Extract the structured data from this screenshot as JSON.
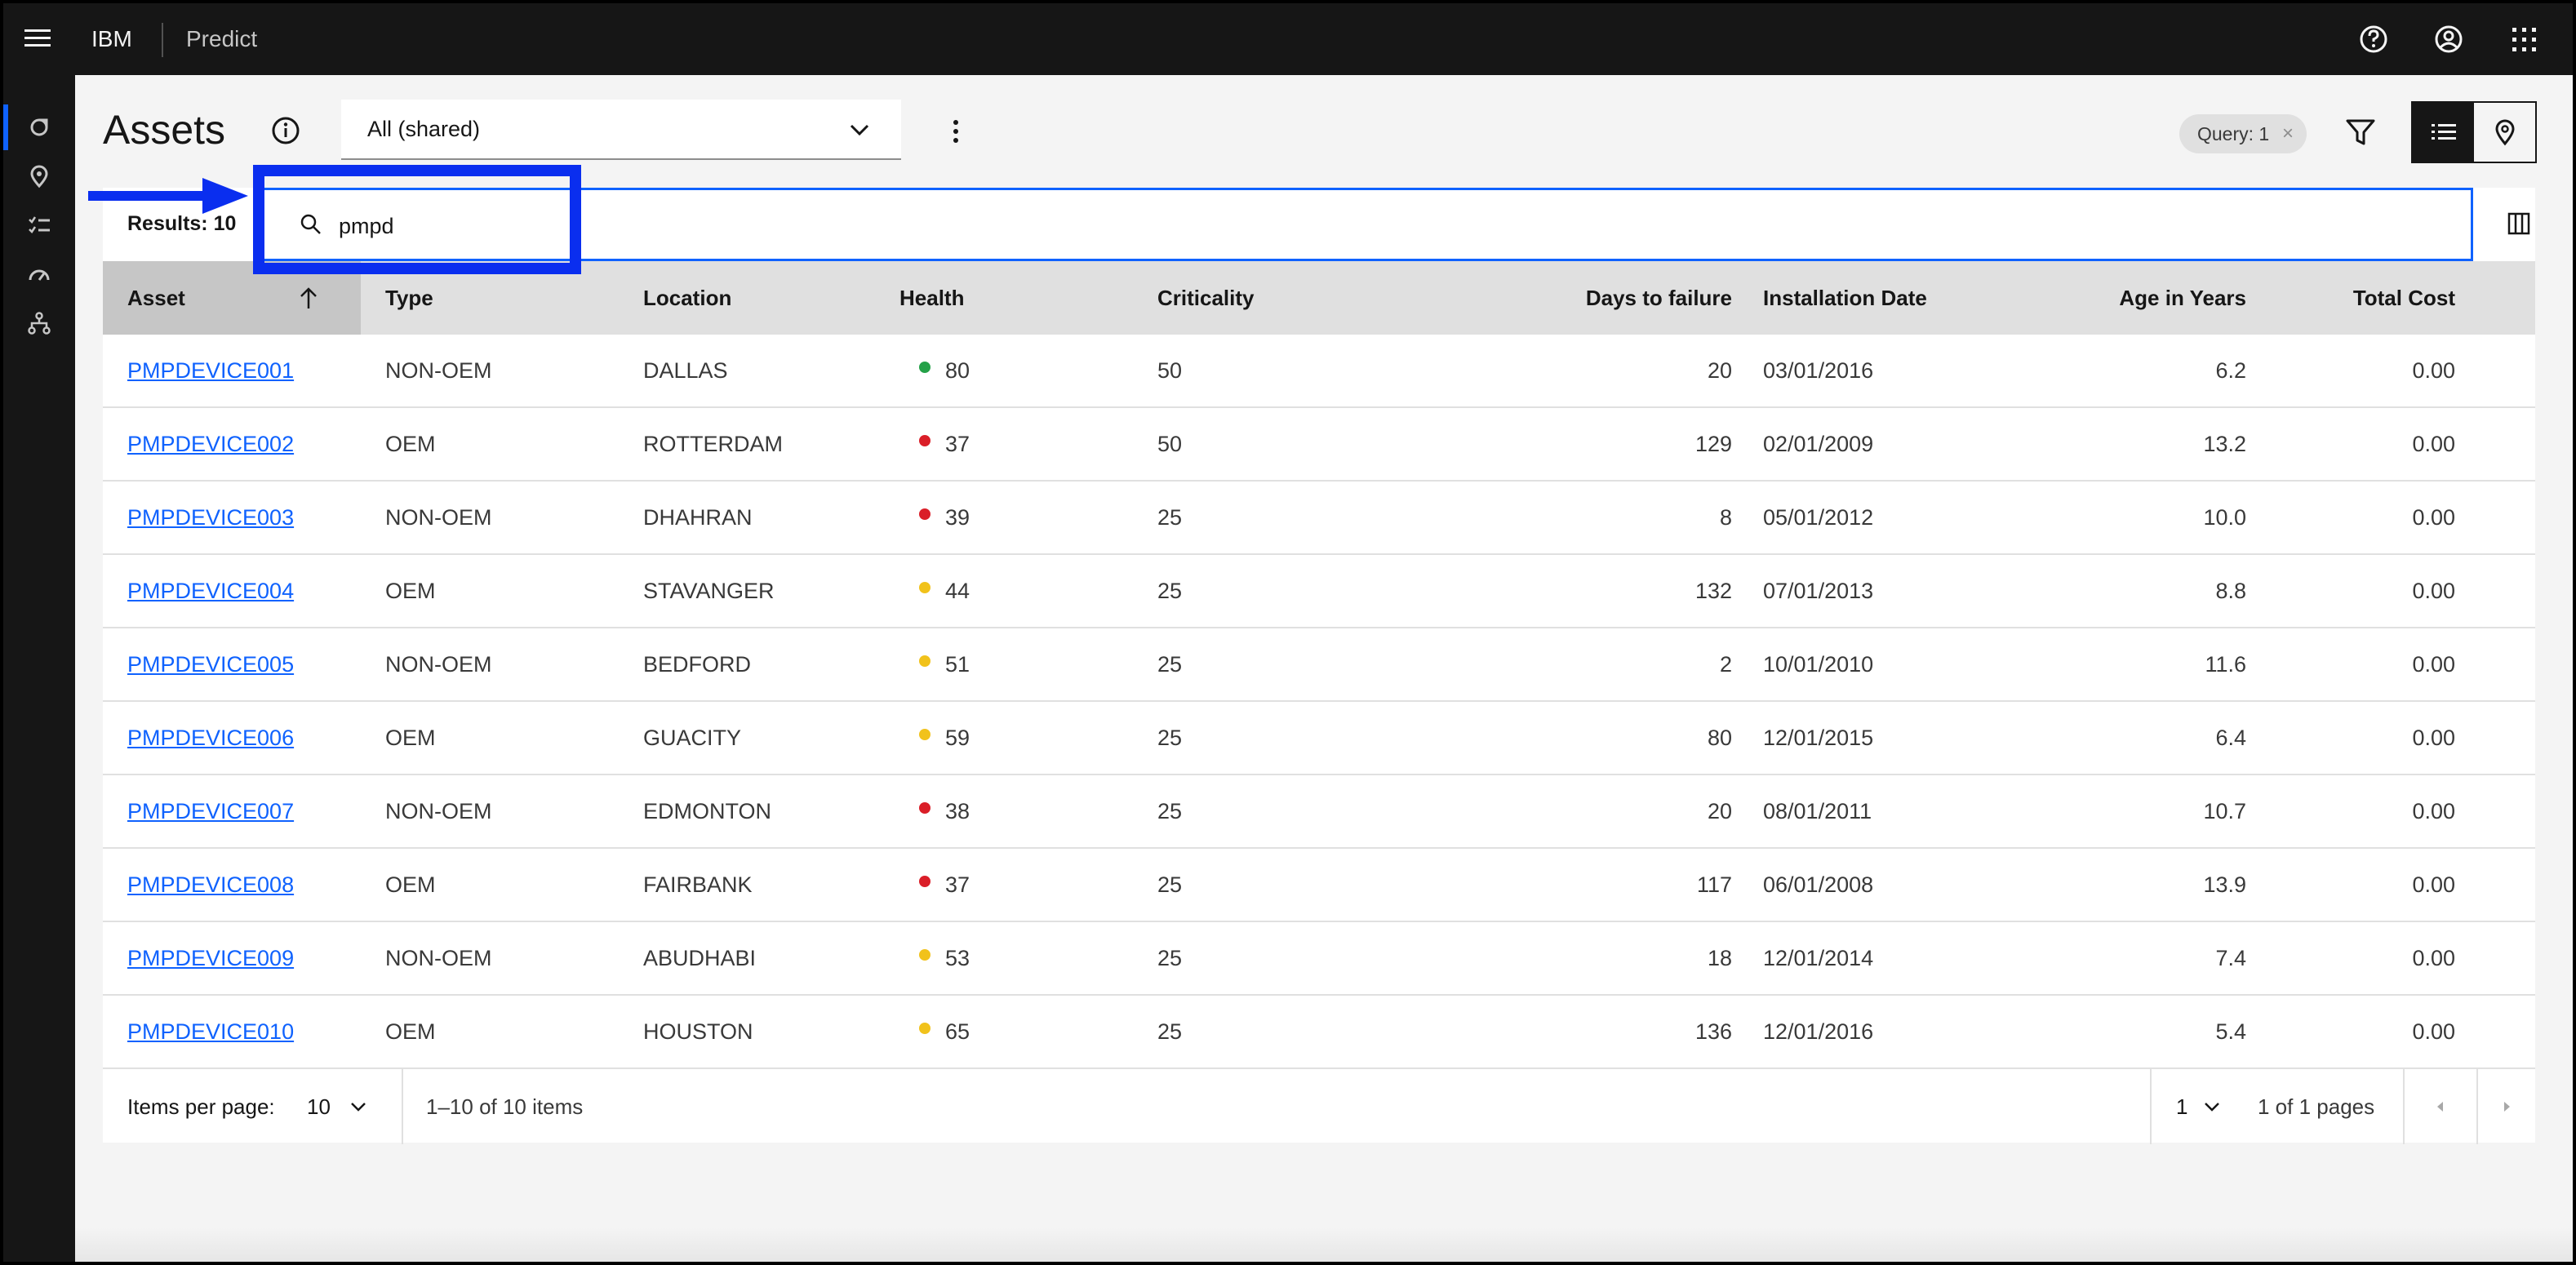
{
  "header": {
    "brand": "IBM",
    "product": "Predict"
  },
  "page": {
    "title": "Assets",
    "view_select": "All (shared)",
    "query_tag": "Query: 1",
    "query_tag_close": "×"
  },
  "toolbar": {
    "results": "Results: 10",
    "search_value": "pmpd"
  },
  "table": {
    "columns": [
      "Asset",
      "Type",
      "Location",
      "Health",
      "Criticality",
      "Days to failure",
      "Installation Date",
      "Age in Years",
      "Total Cost"
    ],
    "rows": [
      {
        "asset": "PMPDEVICE001",
        "type": "NON-OEM",
        "location": "DALLAS",
        "health": "80",
        "health_color": "#24a148",
        "criticality": "50",
        "days": "20",
        "install": "03/01/2016",
        "age": "6.2",
        "cost": "0.00"
      },
      {
        "asset": "PMPDEVICE002",
        "type": "OEM",
        "location": "ROTTERDAM",
        "health": "37",
        "health_color": "#da1e28",
        "criticality": "50",
        "days": "129",
        "install": "02/01/2009",
        "age": "13.2",
        "cost": "0.00"
      },
      {
        "asset": "PMPDEVICE003",
        "type": "NON-OEM",
        "location": "DHAHRAN",
        "health": "39",
        "health_color": "#da1e28",
        "criticality": "25",
        "days": "8",
        "install": "05/01/2012",
        "age": "10.0",
        "cost": "0.00"
      },
      {
        "asset": "PMPDEVICE004",
        "type": "OEM",
        "location": "STAVANGER",
        "health": "44",
        "health_color": "#f1c21b",
        "criticality": "25",
        "days": "132",
        "install": "07/01/2013",
        "age": "8.8",
        "cost": "0.00"
      },
      {
        "asset": "PMPDEVICE005",
        "type": "NON-OEM",
        "location": "BEDFORD",
        "health": "51",
        "health_color": "#f1c21b",
        "criticality": "25",
        "days": "2",
        "install": "10/01/2010",
        "age": "11.6",
        "cost": "0.00"
      },
      {
        "asset": "PMPDEVICE006",
        "type": "OEM",
        "location": "GUACITY",
        "health": "59",
        "health_color": "#f1c21b",
        "criticality": "25",
        "days": "80",
        "install": "12/01/2015",
        "age": "6.4",
        "cost": "0.00"
      },
      {
        "asset": "PMPDEVICE007",
        "type": "NON-OEM",
        "location": "EDMONTON",
        "health": "38",
        "health_color": "#da1e28",
        "criticality": "25",
        "days": "20",
        "install": "08/01/2011",
        "age": "10.7",
        "cost": "0.00"
      },
      {
        "asset": "PMPDEVICE008",
        "type": "OEM",
        "location": "FAIRBANK",
        "health": "37",
        "health_color": "#da1e28",
        "criticality": "25",
        "days": "117",
        "install": "06/01/2008",
        "age": "13.9",
        "cost": "0.00"
      },
      {
        "asset": "PMPDEVICE009",
        "type": "NON-OEM",
        "location": "ABUDHABI",
        "health": "53",
        "health_color": "#f1c21b",
        "criticality": "25",
        "days": "18",
        "install": "12/01/2014",
        "age": "7.4",
        "cost": "0.00"
      },
      {
        "asset": "PMPDEVICE010",
        "type": "OEM",
        "location": "HOUSTON",
        "health": "65",
        "health_color": "#f1c21b",
        "criticality": "25",
        "days": "136",
        "install": "12/01/2016",
        "age": "5.4",
        "cost": "0.00"
      }
    ]
  },
  "pagination": {
    "items_per_page_label": "Items per page:",
    "items_per_page": "10",
    "range": "1–10 of 10 items",
    "page": "1",
    "pages": "1 of 1 pages"
  },
  "icons": {
    "menu": "hamburger-icon",
    "help": "help-icon",
    "user": "user-avatar-icon",
    "apps": "app-switcher-icon",
    "info": "info-icon",
    "search": "search-icon",
    "filter": "filter-icon",
    "list": "list-view-icon",
    "map": "map-view-icon",
    "columns": "column-settings-icon"
  },
  "colors": {
    "accent": "#0f62fe",
    "annotation": "#0a2eef",
    "health_good": "#24a148",
    "health_warn": "#f1c21b",
    "health_bad": "#da1e28"
  }
}
